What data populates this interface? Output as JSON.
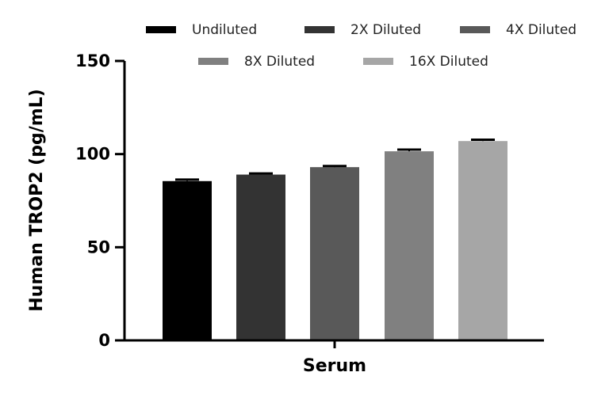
{
  "chart_data": {
    "type": "bar",
    "title": "",
    "xlabel": "Serum",
    "ylabel": "Human TROP2 (pg/mL)",
    "ylim": [
      0,
      150
    ],
    "yticks": [
      0,
      50,
      100,
      150
    ],
    "grid": false,
    "legend_position": "top",
    "categories": [
      "Serum"
    ],
    "series": [
      {
        "name": "Undiluted",
        "values": [
          85.5
        ],
        "error": [
          0.8
        ],
        "color": "#000000"
      },
      {
        "name": "2X Diluted",
        "values": [
          89.0
        ],
        "error": [
          0.6
        ],
        "color": "#333333"
      },
      {
        "name": "4X Diluted",
        "values": [
          93.0
        ],
        "error": [
          0.6
        ],
        "color": "#595959"
      },
      {
        "name": "8X Diluted",
        "values": [
          101.5
        ],
        "error": [
          0.9
        ],
        "color": "#808080"
      },
      {
        "name": "16X Diluted",
        "values": [
          107.0
        ],
        "error": [
          0.7
        ],
        "color": "#a6a6a6"
      }
    ]
  }
}
